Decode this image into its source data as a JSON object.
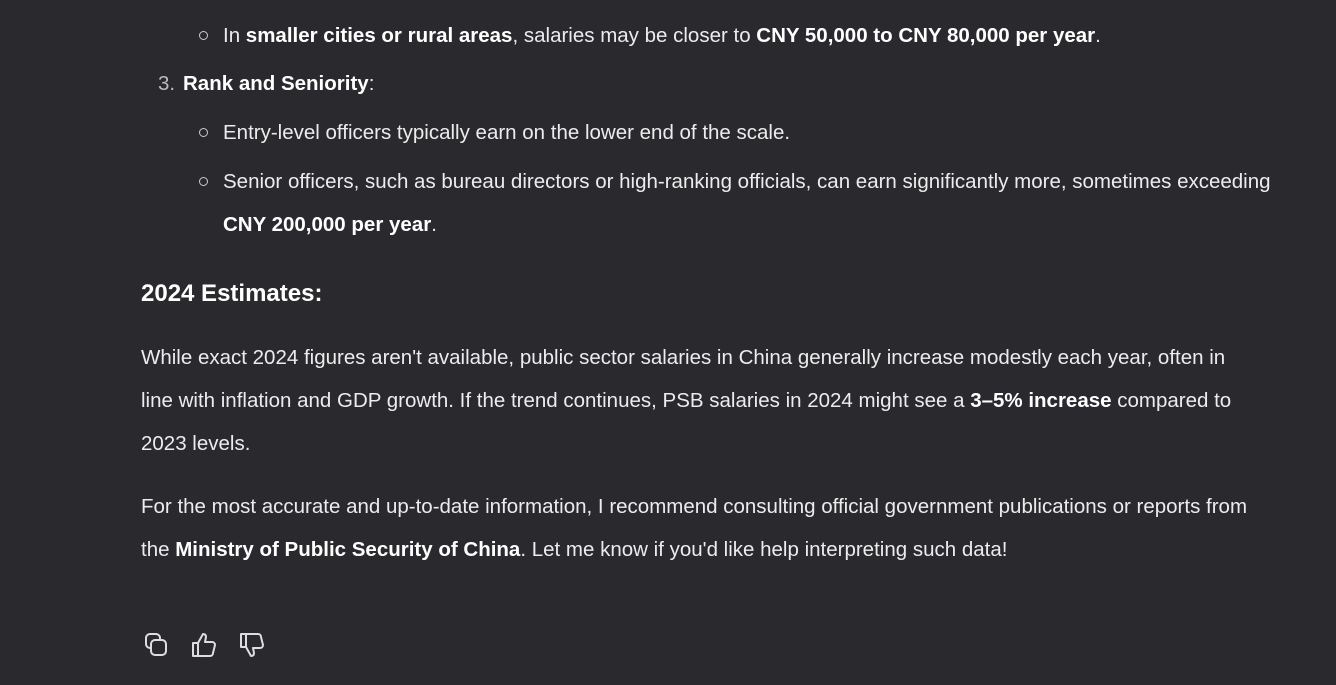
{
  "top_bullet": {
    "runs": [
      {
        "text": "In "
      },
      {
        "text": "smaller cities or rural areas",
        "bold": true
      },
      {
        "text": ", salaries may be closer to "
      },
      {
        "text": "CNY 50,000 to CNY 80,000 per year",
        "bold": true
      },
      {
        "text": "."
      }
    ]
  },
  "list_item": {
    "number": "3.",
    "runs": [
      {
        "text": "Rank and Seniority",
        "bold": true
      },
      {
        "text": ":"
      }
    ]
  },
  "sub_bullets": [
    {
      "runs": [
        {
          "text": "Entry-level officers typically earn on the lower end of the scale."
        }
      ]
    },
    {
      "runs": [
        {
          "text": "Senior officers, such as bureau directors or high-ranking officials, can earn significantly more, sometimes exceeding "
        },
        {
          "text": "CNY 200,000 per year",
          "bold": true
        },
        {
          "text": "."
        }
      ]
    }
  ],
  "heading": "2024 Estimates:",
  "paragraphs": [
    {
      "runs": [
        {
          "text": "While exact 2024 figures aren't available, public sector salaries in China generally increase modestly each year, often in line with inflation and GDP growth. If the trend continues, PSB salaries in 2024 might see a "
        },
        {
          "text": "3–5% increase",
          "bold": true
        },
        {
          "text": " compared to 2023 levels."
        }
      ]
    },
    {
      "runs": [
        {
          "text": "For the most accurate and up-to-date information, I recommend consulting official government publications or reports from the "
        },
        {
          "text": "Ministry of Public Security of China",
          "bold": true
        },
        {
          "text": ". Let me know if you'd like help interpreting such data!"
        }
      ]
    }
  ]
}
